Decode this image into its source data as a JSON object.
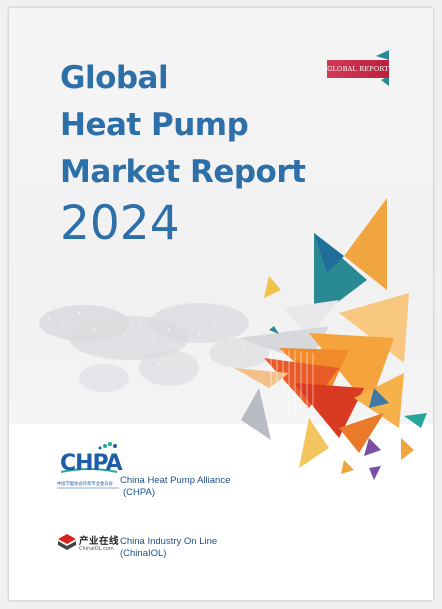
{
  "title": {
    "line1": "Global",
    "line2": "Heat Pump",
    "line3": "Market Report",
    "year": "2024"
  },
  "badge": "GLOBAL REPORT",
  "orgs": [
    {
      "logo_text": "CHPA",
      "logo_subtext": "中国节能协会热泵专业委员会",
      "name": "China Heat Pump Alliance",
      "abbr": "(CHPA)"
    },
    {
      "logo_text": "产业在线",
      "logo_subtext": "ChinaIOL.com",
      "name": "China Industry On Line",
      "abbr": "(ChinaIOL)"
    }
  ],
  "colors": {
    "title": "#2d6fa8",
    "badge": "#c52a47",
    "orange": "#f0a541",
    "red": "#e24a2a",
    "teal": "#2a8a94"
  },
  "icons": [
    "world-map-graphic",
    "triangle-shapes",
    "chpa-logo",
    "chinaiol-logo"
  ]
}
